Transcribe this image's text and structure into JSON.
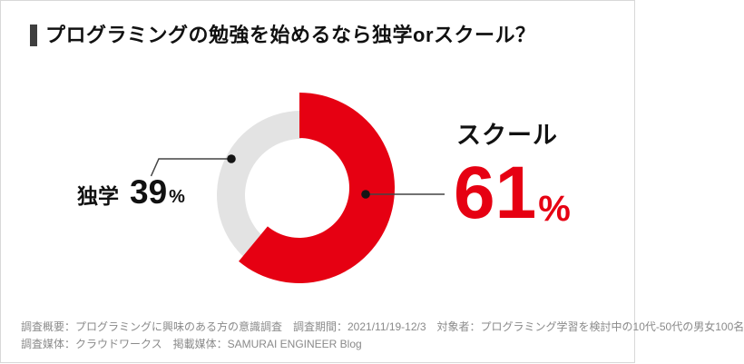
{
  "chart_data": {
    "type": "pie",
    "subtype": "donut",
    "title": "プログラミングの勉強を始めるなら独学orスクール？",
    "categories": [
      "スクール",
      "独学"
    ],
    "values": [
      61,
      39
    ],
    "unit": "%",
    "colors": [
      "#e60012",
      "#e3e3e3"
    ],
    "start_angle_deg": 0,
    "direction": "clockwise",
    "emphasized_slice": "スクール",
    "labels_layout": "callout",
    "legend_position": "none"
  },
  "footer": {
    "line1": "調査概要：プログラミングに興味のある方の意識調査　調査期間：2021/11/19-12/3　対象者：プログラミング学習を検討中の10代-50代の男女100名",
    "line2": "調査媒体：クラウドワークス　掲載媒体：SAMURAI ENGINEER Blog"
  },
  "colors": {
    "accent_red": "#e60012",
    "slice_gray": "#e3e3e3",
    "title_marker": "#3f3f3f",
    "text_dark": "#111111",
    "footer_gray": "#8a8a8a",
    "callout_line": "#444444",
    "border": "#d8d8d8"
  }
}
